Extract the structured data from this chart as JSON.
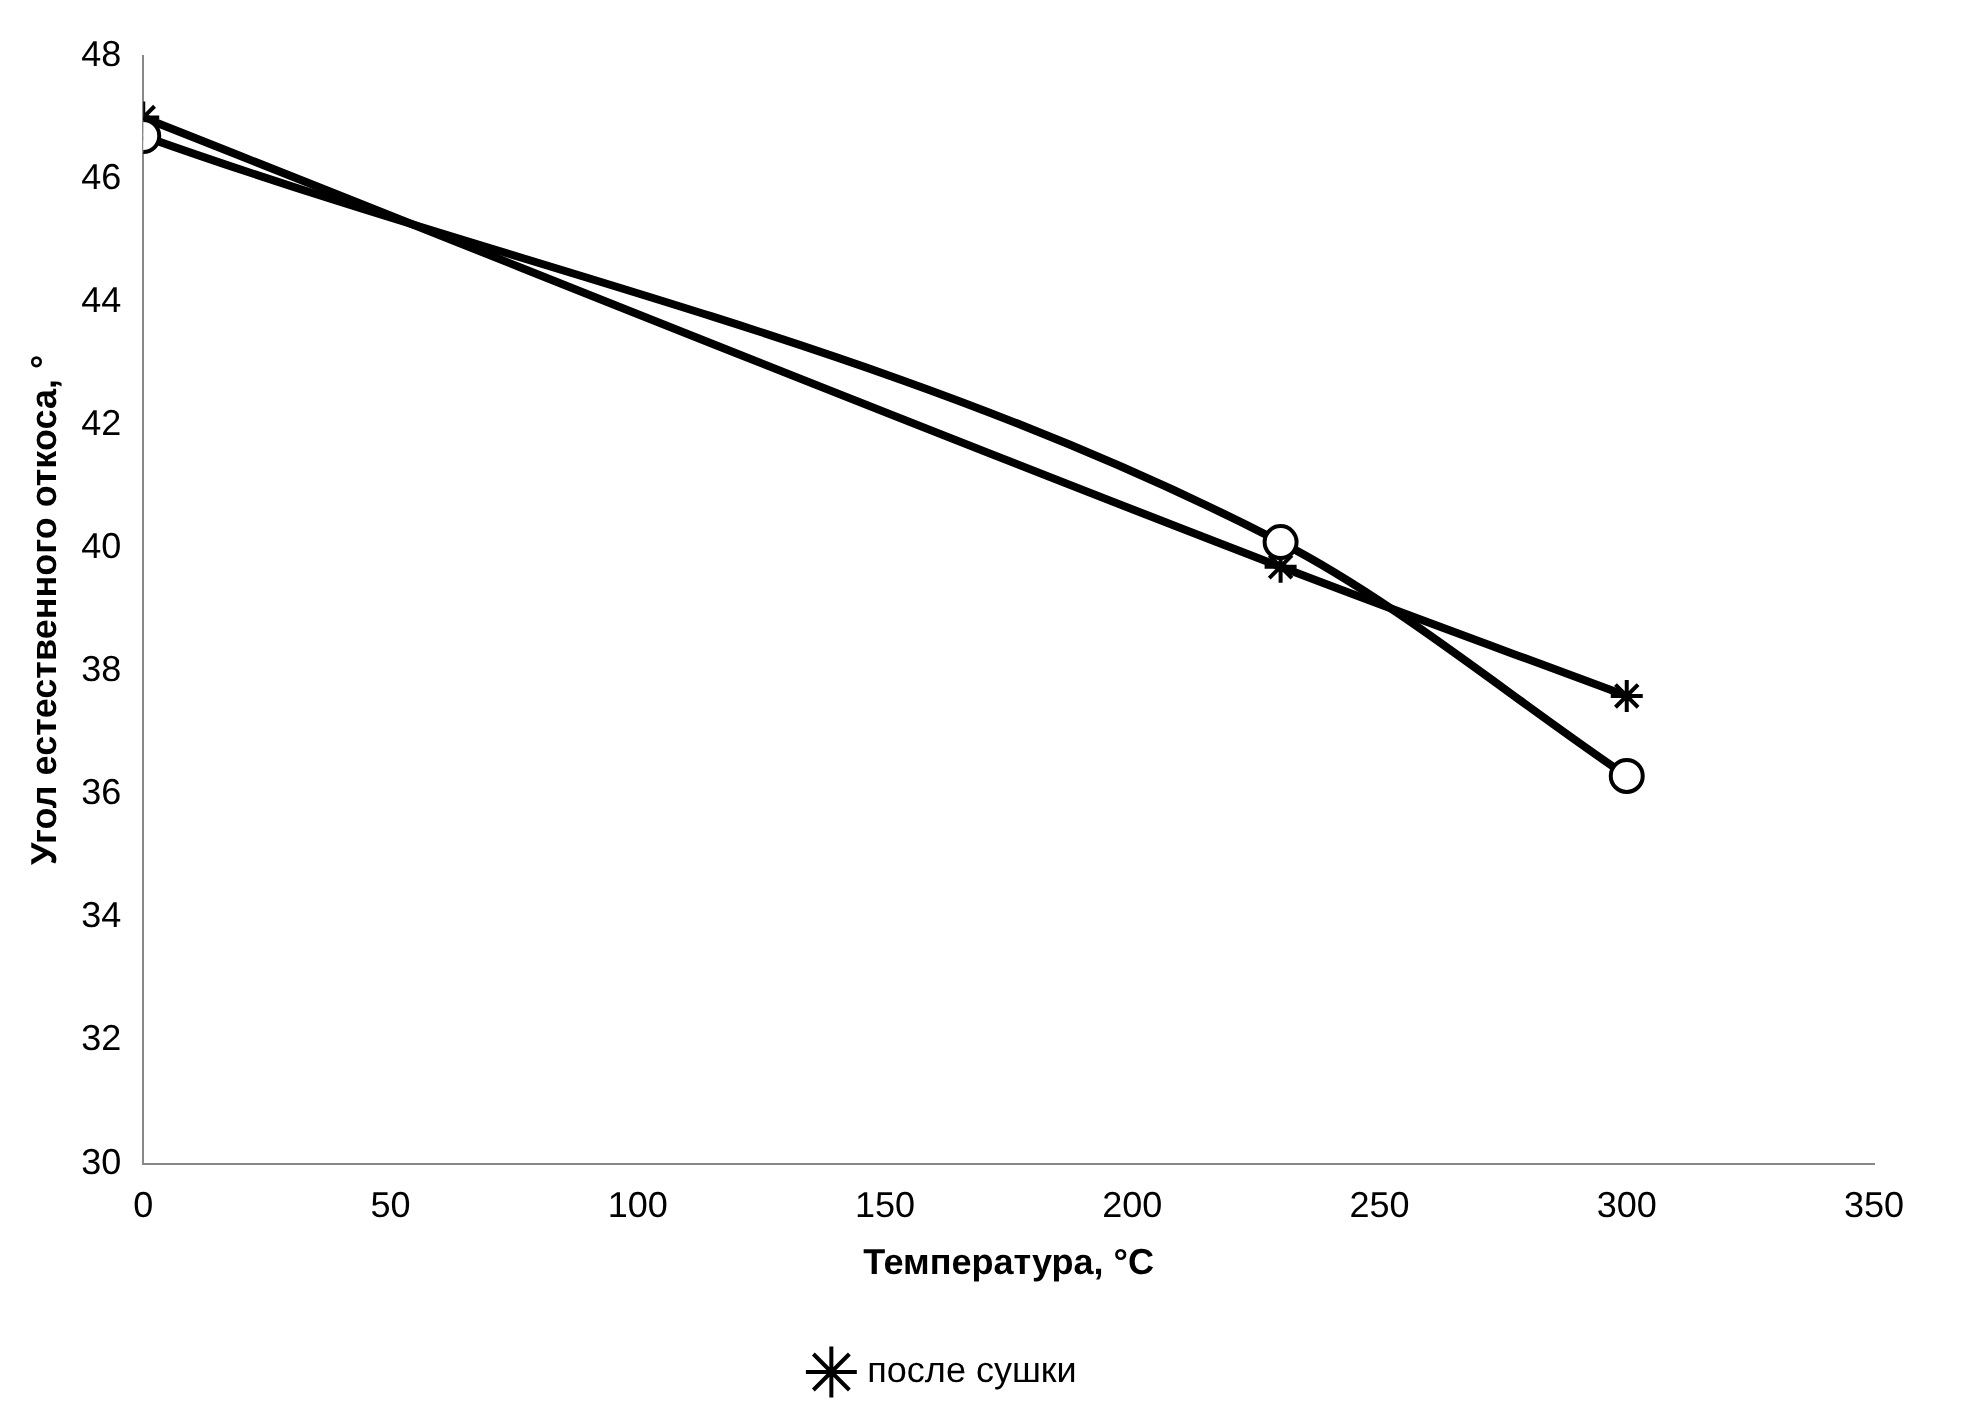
{
  "chart_data": {
    "type": "line",
    "xlabel": "Температура, °C",
    "ylabel": "Угол естественного откоса, °",
    "x": [
      0,
      230,
      300
    ],
    "series": [
      {
        "color": "#000000",
        "marker": "circle",
        "values": [
          46.7,
          40.1,
          36.3
        ]
      },
      {
        "name": "после сушки",
        "color": "#000000",
        "marker": "cross",
        "values": [
          47.0,
          39.7,
          37.6
        ]
      }
    ],
    "xlim": [
      0,
      350
    ],
    "xticks": [
      0,
      50,
      100,
      150,
      200,
      250,
      300,
      350
    ],
    "ylim": [
      30,
      48
    ],
    "yticks": [
      30,
      32,
      34,
      36,
      38,
      40,
      42,
      44,
      46,
      48
    ],
    "grid": false,
    "legend": "bottom"
  }
}
